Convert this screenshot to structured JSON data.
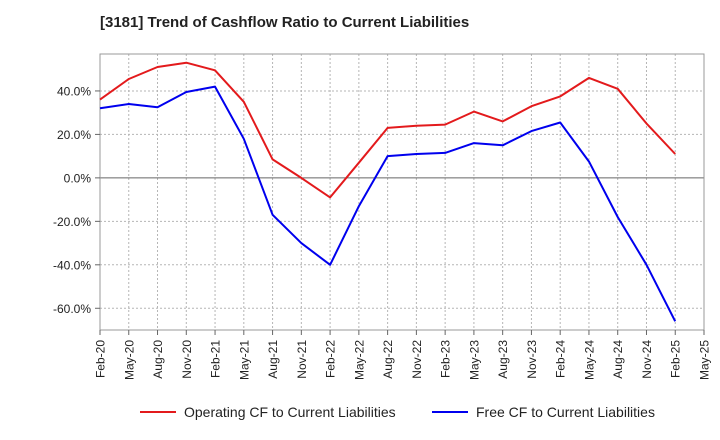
{
  "chart_data": {
    "type": "line",
    "title": "[3181]  Trend of Cashflow Ratio to Current Liabilities",
    "xlabel": "",
    "ylabel": "",
    "ylim": [
      -70,
      57
    ],
    "y_ticks": [
      40,
      20,
      0,
      -20,
      -40,
      -60
    ],
    "y_tick_labels": [
      "40.0%",
      "20.0%",
      "0.0%",
      "-20.0%",
      "-40.0%",
      "-60.0%"
    ],
    "x_tick_labels": [
      "Feb-20",
      "May-20",
      "Aug-20",
      "Nov-20",
      "Feb-21",
      "May-21",
      "Aug-21",
      "Nov-21",
      "Feb-22",
      "May-22",
      "Aug-22",
      "Nov-22",
      "Feb-23",
      "May-23",
      "Aug-23",
      "Nov-23",
      "Feb-24",
      "May-24",
      "Aug-24",
      "Nov-24",
      "Feb-25",
      "May-25"
    ],
    "grid": true,
    "legend_position": "bottom",
    "series": [
      {
        "name": "Operating CF to Current Liabilities",
        "color": "#e31a1c",
        "values": [
          36,
          45.5,
          51,
          53,
          49.5,
          35,
          8.5,
          0,
          -9,
          7,
          23,
          24,
          24.5,
          30.5,
          26,
          33,
          37.5,
          46,
          41,
          25,
          11
        ]
      },
      {
        "name": "Free CF to Current Liabilities",
        "color": "#0000ee",
        "values": [
          32,
          34,
          32.5,
          39.5,
          42,
          18,
          -17,
          -30,
          -40,
          -13,
          10,
          11,
          11.5,
          16,
          15,
          21.5,
          25.5,
          7.5,
          -18,
          -40,
          -66
        ]
      }
    ]
  }
}
